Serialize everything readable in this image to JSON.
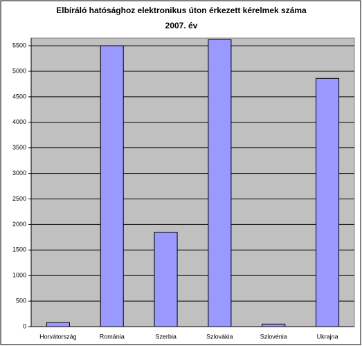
{
  "chart_data": {
    "type": "bar",
    "title": "Elbíráló hatósághoz elektronikus úton érkezett kérelmek száma",
    "subtitle": "2007. év",
    "categories": [
      "Horvátország",
      "Románia",
      "Szerbia",
      "Szlovákia",
      "Szlovénia",
      "Ukrajna"
    ],
    "values": [
      80,
      5500,
      1850,
      5620,
      50,
      4860
    ],
    "color": "#9999ff",
    "ylim": [
      0,
      5650
    ],
    "yticks": [
      0,
      500,
      1000,
      1500,
      2000,
      2500,
      3000,
      3500,
      4000,
      4500,
      5000,
      5500
    ],
    "grid": true
  }
}
